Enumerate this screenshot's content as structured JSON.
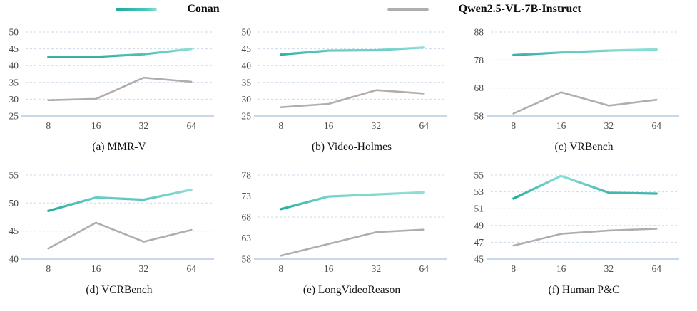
{
  "legend": {
    "items": [
      {
        "label": "Conan",
        "color": "#2fbcb2",
        "color_dark": "#1fa89e",
        "color_light": "#8fdfd6"
      },
      {
        "label": "Qwen2.5-VL-7B-Instruct",
        "color": "#b0adad"
      }
    ]
  },
  "colors": {
    "teal_dark": "#1fa89e",
    "teal_light": "#8fdfd6",
    "gray": "#b0adad",
    "grid": "#c9d9ee",
    "axis": "#a6c1e0",
    "tick_text": "#4c4c4c",
    "caption_text": "#111111"
  },
  "chart_data": [
    {
      "type": "line",
      "title": "(a) MMR-V",
      "xlabel": "",
      "ylabel": "",
      "categories": [
        8,
        16,
        32,
        64
      ],
      "yticks": [
        25,
        30,
        35,
        40,
        45,
        50
      ],
      "ylim": [
        25,
        50
      ],
      "grid": true,
      "legend_position": "top",
      "series": [
        {
          "name": "Conan",
          "values": [
            42.5,
            42.6,
            43.4,
            45.0
          ]
        },
        {
          "name": "Qwen2.5-VL-7B-Instruct",
          "values": [
            29.7,
            30.1,
            36.4,
            35.2
          ]
        }
      ]
    },
    {
      "type": "line",
      "title": "(b) Video-Holmes",
      "xlabel": "",
      "ylabel": "",
      "categories": [
        8,
        16,
        32,
        64
      ],
      "yticks": [
        25,
        30,
        35,
        40,
        45,
        50
      ],
      "ylim": [
        25,
        50
      ],
      "grid": true,
      "legend_position": "top",
      "series": [
        {
          "name": "Conan",
          "values": [
            43.3,
            44.5,
            44.6,
            45.4
          ]
        },
        {
          "name": "Qwen2.5-VL-7B-Instruct",
          "values": [
            27.6,
            28.6,
            32.7,
            31.7
          ]
        }
      ]
    },
    {
      "type": "line",
      "title": "(c) VRBench",
      "xlabel": "",
      "ylabel": "",
      "categories": [
        8,
        16,
        32,
        64
      ],
      "yticks": [
        58,
        68,
        78,
        88
      ],
      "ylim": [
        58,
        88
      ],
      "grid": true,
      "legend_position": "top",
      "series": [
        {
          "name": "Conan",
          "values": [
            79.8,
            80.7,
            81.4,
            81.8
          ]
        },
        {
          "name": "Qwen2.5-VL-7B-Instruct",
          "values": [
            58.9,
            66.5,
            61.7,
            63.8
          ]
        }
      ]
    },
    {
      "type": "line",
      "title": "(d) VCRBench",
      "xlabel": "",
      "ylabel": "",
      "categories": [
        8,
        16,
        32,
        64
      ],
      "yticks": [
        40,
        45,
        50,
        55
      ],
      "ylim": [
        40,
        55
      ],
      "grid": true,
      "legend_position": "top",
      "series": [
        {
          "name": "Conan",
          "values": [
            48.6,
            51.0,
            50.6,
            52.4
          ]
        },
        {
          "name": "Qwen2.5-VL-7B-Instruct",
          "values": [
            41.9,
            46.5,
            43.1,
            45.2
          ]
        }
      ]
    },
    {
      "type": "line",
      "title": "(e) LongVideoReason",
      "xlabel": "",
      "ylabel": "",
      "categories": [
        8,
        16,
        32,
        64
      ],
      "yticks": [
        58,
        63,
        68,
        73,
        78
      ],
      "ylim": [
        58,
        78
      ],
      "grid": true,
      "legend_position": "top",
      "series": [
        {
          "name": "Conan",
          "values": [
            69.9,
            72.9,
            73.4,
            73.9
          ]
        },
        {
          "name": "Qwen2.5-VL-7B-Instruct",
          "values": [
            58.8,
            61.6,
            64.4,
            65.0
          ]
        }
      ]
    },
    {
      "type": "line",
      "title": "(f) Human P&C",
      "xlabel": "",
      "ylabel": "",
      "categories": [
        8,
        16,
        32,
        64
      ],
      "yticks": [
        45,
        47,
        49,
        51,
        53,
        55
      ],
      "ylim": [
        45,
        55
      ],
      "grid": true,
      "legend_position": "top",
      "series": [
        {
          "name": "Conan",
          "values": [
            52.2,
            54.9,
            52.9,
            52.8
          ]
        },
        {
          "name": "Qwen2.5-VL-7B-Instruct",
          "values": [
            46.6,
            48.0,
            48.4,
            48.6
          ]
        }
      ]
    }
  ]
}
